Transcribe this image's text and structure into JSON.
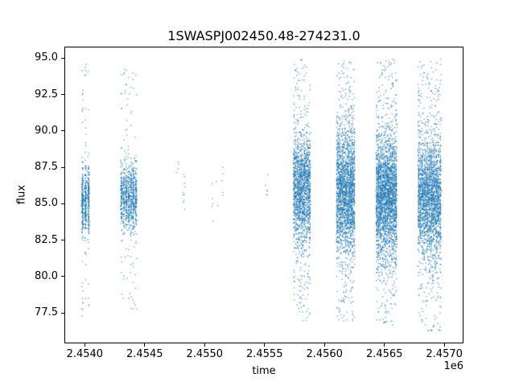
{
  "chart_data": {
    "type": "scatter",
    "title": "1SWASPJ002450.48-274231.0",
    "xlabel": "time",
    "ylabel": "flux",
    "x_offset": "1e6",
    "grid": false,
    "legend": null,
    "xlim": [
      2453830,
      2457160
    ],
    "ylim": [
      75.4,
      95.8
    ],
    "xticks": [
      {
        "value": 2454000,
        "label": "2.4540"
      },
      {
        "value": 2454500,
        "label": "2.4545"
      },
      {
        "value": 2455000,
        "label": "2.4550"
      },
      {
        "value": 2455500,
        "label": "2.4555"
      },
      {
        "value": 2456000,
        "label": "2.4560"
      },
      {
        "value": 2456500,
        "label": "2.4565"
      },
      {
        "value": 2457000,
        "label": "2.4570"
      }
    ],
    "yticks": [
      {
        "value": 77.5,
        "label": "77.5"
      },
      {
        "value": 80.0,
        "label": "80.0"
      },
      {
        "value": 82.5,
        "label": "82.5"
      },
      {
        "value": 85.0,
        "label": "85.0"
      },
      {
        "value": 87.5,
        "label": "87.5"
      },
      {
        "value": 90.0,
        "label": "90.0"
      },
      {
        "value": 92.5,
        "label": "92.5"
      },
      {
        "value": 95.0,
        "label": "95.0"
      }
    ],
    "marker_color": "#1f77b4",
    "marker_alpha": 0.45,
    "marker_size_px": 1.6,
    "y_clip": [
      76.2,
      95.0
    ],
    "clusters": [
      {
        "x_min": 2453975,
        "x_max": 2454025,
        "stripes": 3,
        "core_n": 520,
        "core_mean": 85.2,
        "core_sigma": 1.15,
        "tail_n": 70,
        "tail_min": 77.3,
        "tail_max": 94.8
      },
      {
        "x_min": 2454300,
        "x_max": 2454420,
        "stripes": 7,
        "core_n": 850,
        "core_mean": 85.5,
        "core_sigma": 1.15,
        "tail_n": 110,
        "tail_min": 77.6,
        "tail_max": 94.3
      },
      {
        "x_min": 2454770,
        "x_max": 2454820,
        "stripes": 2,
        "core_n": 11,
        "core_mean": 86.3,
        "core_sigma": 1.4,
        "tail_n": 3,
        "tail_min": 84.2,
        "tail_max": 88.8
      },
      {
        "x_min": 2455060,
        "x_max": 2455140,
        "stripes": 3,
        "core_n": 10,
        "core_mean": 85.6,
        "core_sigma": 0.9,
        "tail_n": 2,
        "tail_min": 83.9,
        "tail_max": 87.1
      },
      {
        "x_min": 2455500,
        "x_max": 2455535,
        "stripes": 1,
        "core_n": 6,
        "core_mean": 86.0,
        "core_sigma": 0.5,
        "tail_n": 0,
        "tail_min": 85.3,
        "tail_max": 86.8
      },
      {
        "x_min": 2455740,
        "x_max": 2455870,
        "stripes": 10,
        "core_n": 1600,
        "core_mean": 86.1,
        "core_sigma": 1.9,
        "tail_n": 240,
        "tail_min": 77.0,
        "tail_max": 95.0
      },
      {
        "x_min": 2456100,
        "x_max": 2456240,
        "stripes": 11,
        "core_n": 2100,
        "core_mean": 85.9,
        "core_sigma": 2.1,
        "tail_n": 300,
        "tail_min": 76.8,
        "tail_max": 95.0
      },
      {
        "x_min": 2456430,
        "x_max": 2456590,
        "stripes": 12,
        "core_n": 2600,
        "core_mean": 85.5,
        "core_sigma": 2.2,
        "tail_n": 360,
        "tail_min": 76.6,
        "tail_max": 95.0
      },
      {
        "x_min": 2456780,
        "x_max": 2456960,
        "stripes": 13,
        "core_n": 2300,
        "core_mean": 85.4,
        "core_sigma": 2.1,
        "tail_n": 340,
        "tail_min": 76.3,
        "tail_max": 95.0
      }
    ]
  }
}
